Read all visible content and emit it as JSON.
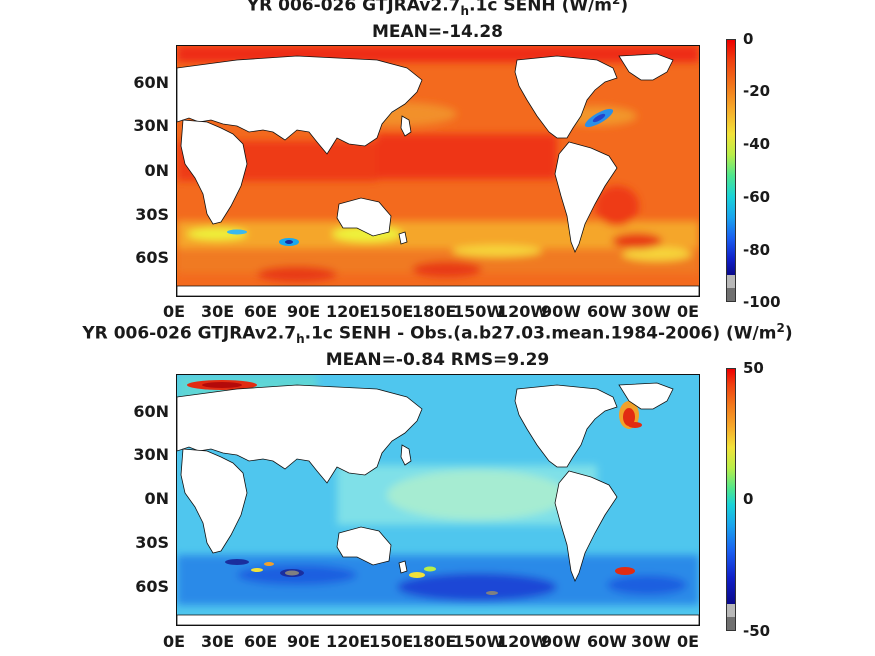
{
  "top": {
    "title_pre": "YR 006-026 GTJRAv2.7",
    "title_sub": "h",
    "title_post": ".1c  SENH (W/m",
    "title_sup": "2",
    "title_end": ")",
    "stats": "MEAN=-14.28",
    "colorbar_ticks": [
      "0",
      "-20",
      "-40",
      "-60",
      "-80",
      "-100"
    ],
    "colorbar_range": [
      -100,
      0
    ]
  },
  "bottom": {
    "title_pre": "YR 006-026 GTJRAv2.7",
    "title_sub": "h",
    "title_post": ".1c SENH - Obs.(a.b27.03.mean.1984-2006) (W/m",
    "title_sup": "2",
    "title_end": ")",
    "stats": "MEAN=-0.84 RMS=9.29",
    "colorbar_ticks": [
      "50",
      "0",
      "-50"
    ],
    "colorbar_range": [
      -50,
      50
    ]
  },
  "axes": {
    "lat_labels": [
      "60N",
      "30N",
      "0N",
      "30S",
      "60S"
    ],
    "lon_labels": [
      "0E",
      "30E",
      "60E",
      "90E",
      "120E",
      "150E",
      "180E",
      "150W",
      "120W",
      "90W",
      "60W",
      "30W",
      "0E"
    ]
  },
  "colors": {
    "land": "#ffffff",
    "top_ocean": "#f36a1e",
    "top_ocean_hot": "#ee2a12",
    "anom_ocean": "#4fc6ee",
    "anom_neutral": "#7fe0e8",
    "anom_neg": "#1c47d6",
    "anom_pos": "#e22b12"
  }
}
